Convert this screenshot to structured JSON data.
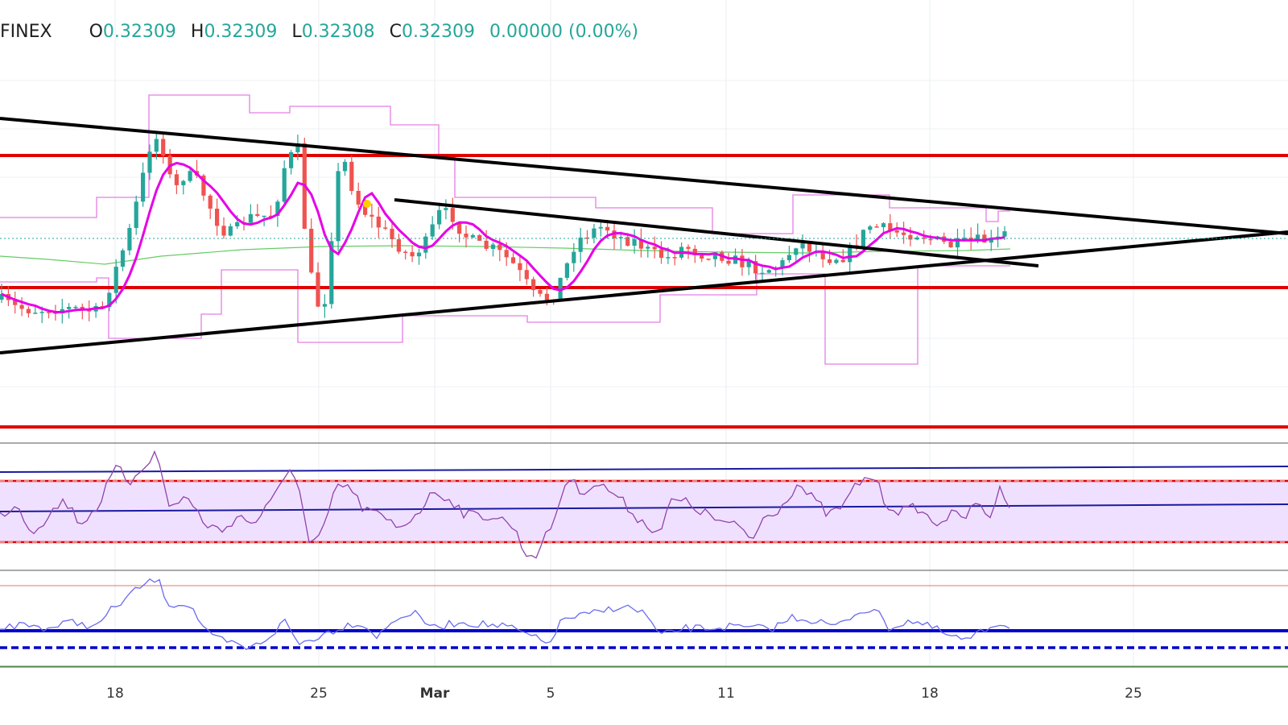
{
  "header": {
    "exchange": "FINEX",
    "open_label": "O",
    "open": "0.32309",
    "high_label": "H",
    "high": "0.32309",
    "low_label": "L",
    "low": "0.32308",
    "close_label": "C",
    "close": "0.32309",
    "change": "0.00000 (0.00%)"
  },
  "colors": {
    "up": "#26a69a",
    "down": "#ef5350",
    "sma": "#e600e6",
    "long_ma": "#66cc66",
    "channel": "#e57ee5",
    "support_resistance": "#e00000",
    "trendline": "#000000",
    "rsi_line": "#8e44ad",
    "rsi_band_fill": "#f0e0ff",
    "osc_line": "#6a6af0",
    "osc_level": "#0000cc",
    "marker": "#ffcc00"
  },
  "chart_data": {
    "type": "candlestick",
    "x_axis": {
      "labels": [
        "18",
        "25",
        "Mar",
        "5",
        "11",
        "18",
        "25"
      ]
    },
    "price": {
      "last_close": 0.32309,
      "candles_approx_count": 150
    },
    "panels": [
      "price",
      "rsi",
      "oscillator"
    ],
    "grid": true
  }
}
